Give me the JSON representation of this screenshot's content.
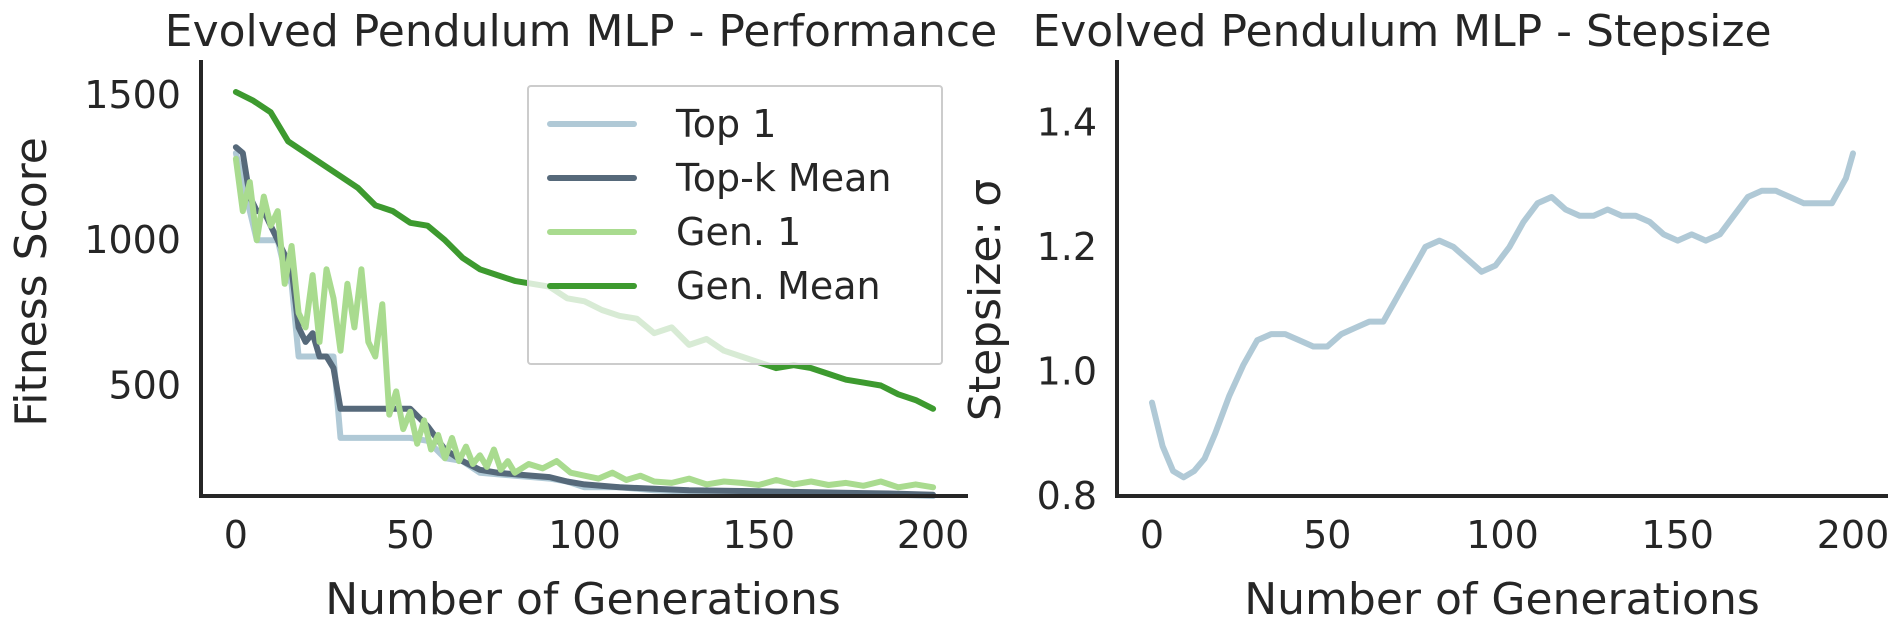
{
  "chart_data": [
    {
      "type": "line",
      "title": "Evolved Pendulum MLP - Performance",
      "xlabel": "Number of Generations",
      "ylabel": "Fitness Score",
      "xlim": [
        -10,
        210
      ],
      "ylim": [
        120,
        1620
      ],
      "xticks": [
        0,
        50,
        100,
        150,
        200
      ],
      "yticks": [
        500,
        1000,
        1500
      ],
      "grid": false,
      "legend_position": "top-right",
      "series": [
        {
          "name": "Top 1",
          "color": "#b0c9d6",
          "x": [
            0,
            2,
            4,
            6,
            8,
            10,
            12,
            14,
            16,
            18,
            20,
            24,
            28,
            30,
            34,
            38,
            42,
            46,
            50,
            55,
            60,
            65,
            70,
            75,
            80,
            85,
            90,
            95,
            100,
            110,
            120,
            130,
            140,
            150,
            160,
            170,
            180,
            190,
            200
          ],
          "y": [
            1300,
            1200,
            1100,
            1000,
            1000,
            1000,
            1000,
            900,
            850,
            600,
            600,
            600,
            600,
            320,
            320,
            320,
            320,
            320,
            320,
            310,
            250,
            240,
            200,
            195,
            190,
            185,
            180,
            170,
            150,
            150,
            140,
            135,
            130,
            128,
            127,
            126,
            125,
            124,
            120
          ]
        },
        {
          "name": "Top-k Mean",
          "color": "#56697a",
          "x": [
            0,
            2,
            4,
            6,
            8,
            10,
            12,
            14,
            16,
            18,
            20,
            22,
            24,
            26,
            28,
            30,
            34,
            38,
            42,
            46,
            50,
            55,
            60,
            65,
            70,
            75,
            80,
            85,
            90,
            95,
            100,
            110,
            120,
            130,
            140,
            150,
            160,
            170,
            180,
            190,
            200
          ],
          "y": [
            1320,
            1300,
            1150,
            1100,
            1100,
            1050,
            1000,
            950,
            900,
            700,
            650,
            680,
            600,
            600,
            560,
            420,
            420,
            420,
            420,
            420,
            420,
            360,
            280,
            240,
            210,
            200,
            195,
            190,
            185,
            170,
            160,
            150,
            145,
            140,
            138,
            136,
            134,
            132,
            130,
            128,
            124
          ]
        },
        {
          "name": "Gen. 1",
          "color": "#a9db8f",
          "x": [
            0,
            2,
            4,
            6,
            8,
            10,
            12,
            14,
            16,
            18,
            20,
            22,
            24,
            26,
            28,
            30,
            32,
            34,
            36,
            38,
            40,
            42,
            44,
            46,
            48,
            50,
            52,
            54,
            56,
            58,
            60,
            62,
            64,
            66,
            68,
            70,
            72,
            74,
            76,
            78,
            80,
            84,
            88,
            92,
            96,
            100,
            104,
            108,
            112,
            116,
            120,
            125,
            130,
            135,
            140,
            145,
            150,
            155,
            160,
            165,
            170,
            175,
            180,
            185,
            190,
            195,
            200
          ],
          "y": [
            1280,
            1100,
            1200,
            1000,
            1150,
            1050,
            1100,
            850,
            980,
            750,
            700,
            880,
            650,
            900,
            800,
            620,
            850,
            700,
            900,
            650,
            600,
            780,
            400,
            480,
            350,
            410,
            300,
            380,
            280,
            330,
            250,
            320,
            240,
            290,
            230,
            260,
            220,
            280,
            210,
            240,
            200,
            230,
            215,
            240,
            200,
            190,
            180,
            200,
            175,
            190,
            170,
            165,
            180,
            160,
            170,
            165,
            158,
            175,
            160,
            170,
            158,
            165,
            155,
            170,
            150,
            160,
            150
          ]
        },
        {
          "name": "Gen. Mean",
          "color": "#3d9a2f",
          "x": [
            0,
            5,
            10,
            15,
            20,
            25,
            30,
            35,
            40,
            45,
            50,
            55,
            60,
            65,
            70,
            75,
            80,
            85,
            90,
            95,
            100,
            105,
            110,
            115,
            120,
            125,
            130,
            135,
            140,
            145,
            150,
            155,
            160,
            165,
            170,
            175,
            180,
            185,
            190,
            195,
            200
          ],
          "y": [
            1510,
            1480,
            1440,
            1340,
            1300,
            1260,
            1220,
            1180,
            1120,
            1100,
            1060,
            1050,
            1000,
            940,
            900,
            880,
            860,
            850,
            840,
            800,
            790,
            760,
            740,
            730,
            680,
            700,
            640,
            660,
            620,
            600,
            580,
            560,
            570,
            560,
            540,
            520,
            510,
            500,
            470,
            450,
            420
          ]
        }
      ]
    },
    {
      "type": "line",
      "title": "Evolved Pendulum MLP - Stepsize",
      "xlabel": "Number of Generations",
      "ylabel": "Stepsize: σ",
      "xlim": [
        -10,
        210
      ],
      "ylim": [
        0.8,
        1.5
      ],
      "xticks": [
        0,
        50,
        100,
        150,
        200
      ],
      "yticks": [
        0.8,
        1.0,
        1.2,
        1.4
      ],
      "grid": false,
      "series": [
        {
          "color": "#b0c9d6",
          "x": [
            0,
            3,
            6,
            9,
            12,
            15,
            18,
            22,
            26,
            30,
            34,
            38,
            42,
            46,
            50,
            54,
            58,
            62,
            66,
            70,
            74,
            78,
            82,
            86,
            90,
            94,
            98,
            102,
            106,
            110,
            114,
            118,
            122,
            126,
            130,
            134,
            138,
            142,
            146,
            150,
            154,
            158,
            162,
            166,
            170,
            174,
            178,
            182,
            186,
            190,
            194,
            198,
            200
          ],
          "y": [
            0.95,
            0.88,
            0.84,
            0.83,
            0.84,
            0.86,
            0.9,
            0.96,
            1.01,
            1.05,
            1.06,
            1.06,
            1.05,
            1.04,
            1.04,
            1.06,
            1.07,
            1.08,
            1.08,
            1.12,
            1.16,
            1.2,
            1.21,
            1.2,
            1.18,
            1.16,
            1.17,
            1.2,
            1.24,
            1.27,
            1.28,
            1.26,
            1.25,
            1.25,
            1.26,
            1.25,
            1.25,
            1.24,
            1.22,
            1.21,
            1.22,
            1.21,
            1.22,
            1.25,
            1.28,
            1.29,
            1.29,
            1.28,
            1.27,
            1.27,
            1.27,
            1.31,
            1.35
          ]
        }
      ]
    }
  ]
}
